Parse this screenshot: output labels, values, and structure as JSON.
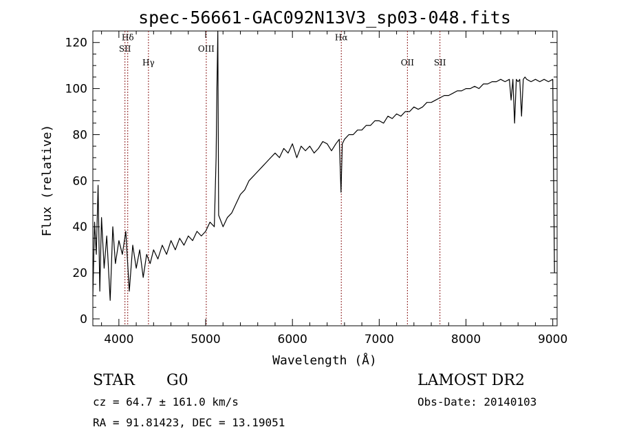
{
  "chart_data": {
    "type": "line",
    "title": "spec-56661-GAC092N13V3_sp03-048.fits",
    "xlabel": "Wavelength (Å)",
    "ylabel": "Flux (relative)",
    "xlim": [
      3700,
      9050
    ],
    "ylim": [
      -3,
      125
    ],
    "xticks": [
      4000,
      5000,
      6000,
      7000,
      8000,
      9000
    ],
    "yticks": [
      0,
      20,
      40,
      60,
      80,
      100,
      120
    ],
    "grid": false,
    "line_color": "#000000",
    "marker_color": "#8b1a1a",
    "series": [
      {
        "x": [
          3700,
          3720,
          3740,
          3760,
          3780,
          3800,
          3830,
          3860,
          3900,
          3930,
          3960,
          4000,
          4040,
          4080,
          4120,
          4160,
          4200,
          4240,
          4280,
          4320,
          4360,
          4400,
          4450,
          4500,
          4550,
          4600,
          4650,
          4700,
          4750,
          4800,
          4850,
          4900,
          4950,
          5000,
          5050,
          5100,
          5120,
          5130,
          5140,
          5150,
          5200,
          5250,
          5300,
          5350,
          5400,
          5450,
          5500,
          5550,
          5600,
          5650,
          5700,
          5750,
          5800,
          5850,
          5900,
          5950,
          6000,
          6050,
          6100,
          6150,
          6200,
          6250,
          6300,
          6350,
          6400,
          6450,
          6500,
          6540,
          6560,
          6575,
          6600,
          6650,
          6700,
          6750,
          6800,
          6850,
          6900,
          6950,
          7000,
          7050,
          7100,
          7150,
          7200,
          7250,
          7300,
          7350,
          7400,
          7450,
          7500,
          7550,
          7600,
          7650,
          7700,
          7750,
          7800,
          7850,
          7900,
          7950,
          8000,
          8050,
          8100,
          8150,
          8200,
          8250,
          8300,
          8350,
          8400,
          8450,
          8500,
          8520,
          8540,
          8560,
          8580,
          8600,
          8620,
          8640,
          8660,
          8680,
          8700,
          8750,
          8800,
          8850,
          8900,
          8950,
          9000,
          9020
        ],
        "y": [
          10,
          42,
          28,
          58,
          12,
          44,
          22,
          36,
          8,
          40,
          24,
          34,
          28,
          38,
          12,
          32,
          22,
          30,
          18,
          28,
          24,
          30,
          26,
          32,
          28,
          34,
          30,
          35,
          32,
          36,
          34,
          38,
          36,
          38,
          42,
          40,
          70,
          100,
          125,
          45,
          40,
          44,
          46,
          50,
          54,
          56,
          60,
          62,
          64,
          66,
          68,
          70,
          72,
          70,
          74,
          72,
          76,
          70,
          75,
          73,
          75,
          72,
          74,
          77,
          76,
          73,
          76,
          78,
          55,
          76,
          78,
          80,
          80,
          82,
          82,
          84,
          84,
          86,
          86,
          85,
          88,
          87,
          89,
          88,
          90,
          90,
          92,
          91,
          92,
          94,
          94,
          95,
          96,
          97,
          97,
          98,
          99,
          99,
          100,
          100,
          101,
          100,
          102,
          102,
          103,
          103,
          104,
          103,
          104,
          95,
          104,
          85,
          104,
          103,
          104,
          88,
          104,
          105,
          104,
          103,
          104,
          103,
          104,
          103,
          104,
          20
        ]
      }
    ],
    "emission_lines": [
      {
        "name": "Hδ",
        "wavelength": 4102,
        "label_y": 121
      },
      {
        "name": "SII",
        "wavelength": 4070,
        "label_y": 116
      },
      {
        "name": "Hγ",
        "wavelength": 4341,
        "label_y": 110
      },
      {
        "name": "OIII",
        "wavelength": 5007,
        "label_y": 116
      },
      {
        "name": "Hα",
        "wavelength": 6563,
        "label_y": 121
      },
      {
        "name": "OII",
        "wavelength": 7325,
        "label_y": 110
      },
      {
        "name": "SII",
        "wavelength": 7700,
        "label_y": 110
      }
    ]
  },
  "info": {
    "class_label": "STAR",
    "subclass": "G0",
    "survey": "LAMOST DR2",
    "redshift_text": "cz = 64.7 ± 161.0 km/s",
    "obs_date": "Obs-Date: 20140103",
    "coords": "RA =  91.81423, DEC =  13.19051"
  }
}
